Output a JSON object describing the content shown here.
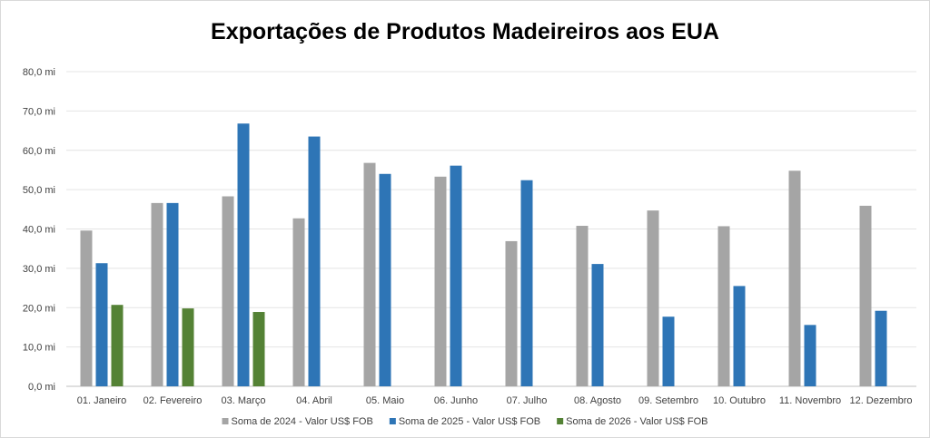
{
  "chart_data": {
    "type": "bar",
    "title": "Exportações de Produtos Madeireiros aos EUA",
    "xlabel": "",
    "ylabel": "",
    "ylim": [
      0,
      80
    ],
    "ytick_labels": [
      "0,0 mi",
      "10,0 mi",
      "20,0 mi",
      "30,0 mi",
      "40,0 mi",
      "50,0 mi",
      "60,0 mi",
      "70,0 mi",
      "80,0 mi"
    ],
    "grid": true,
    "legend_position": "bottom",
    "categories": [
      "01. Janeiro",
      "02. Fevereiro",
      "03. Março",
      "04. Abril",
      "05. Maio",
      "06. Junho",
      "07. Julho",
      "08. Agosto",
      "09. Setembro",
      "10. Outubro",
      "11. Novembro",
      "12. Dezembro"
    ],
    "series": [
      {
        "name": "Soma de 2024 - Valor US$ FOB",
        "color": "#a5a5a5",
        "values": [
          39.6,
          46.6,
          48.3,
          42.7,
          56.8,
          53.3,
          36.9,
          40.8,
          44.7,
          40.7,
          54.8,
          45.9
        ]
      },
      {
        "name": "Soma de 2025 - Valor US$ FOB",
        "color": "#2e75b6",
        "values": [
          31.3,
          46.6,
          66.8,
          63.5,
          54.0,
          56.1,
          52.4,
          31.1,
          17.7,
          25.5,
          15.6,
          19.2
        ]
      },
      {
        "name": "Soma de 2026 - Valor US$ FOB",
        "color": "#548235",
        "values": [
          20.7,
          19.8,
          18.9,
          null,
          null,
          null,
          null,
          null,
          null,
          null,
          null,
          null
        ]
      }
    ]
  }
}
